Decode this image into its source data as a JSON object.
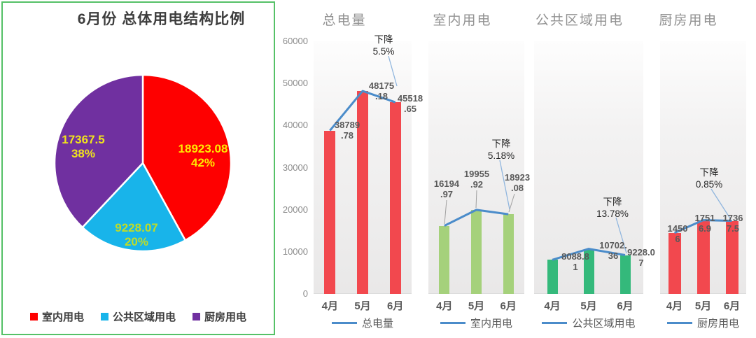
{
  "panel": {
    "border_color": "#55c167"
  },
  "chart_data": [
    {
      "type": "pie",
      "title": "6月份 总体用电结构比例",
      "legend_position": "bottom",
      "slices": [
        {
          "label": "室内用电",
          "value": 18923.08,
          "value_label": "18923.08",
          "percent": "42%",
          "color": "#fe0000",
          "label_color": "#ffe800"
        },
        {
          "label": "公共区域用电",
          "value": 9228.07,
          "value_label": "9228.07",
          "percent": "20%",
          "color": "#18b4ea",
          "label_color": "#bedc28"
        },
        {
          "label": "厨房用电",
          "value": 17367.5,
          "value_label": "17367.5",
          "percent": "38%",
          "color": "#7030a0",
          "label_color": "#f0e41c"
        }
      ]
    },
    {
      "type": "bar",
      "line_overlay": true,
      "title": "总电量",
      "categories": [
        "4月",
        "5月",
        "6月"
      ],
      "values": [
        38789.78,
        48175.18,
        45518.65
      ],
      "data_labels": [
        [
          "38789",
          ".78"
        ],
        [
          "48175",
          ".18"
        ],
        [
          "45518",
          ".65"
        ]
      ],
      "annotation": [
        "下降",
        "5.5%"
      ],
      "legend_label": "总电量",
      "bar_color": "#f2484e",
      "line_color": "#4b8cca",
      "ylim": [
        0,
        60000
      ],
      "y_ticks": [
        60000,
        50000,
        40000,
        30000,
        20000,
        10000,
        0
      ],
      "grid": false
    },
    {
      "type": "bar",
      "line_overlay": true,
      "title": "室内用电",
      "categories": [
        "4月",
        "5月",
        "6月"
      ],
      "values": [
        16194.97,
        19955.92,
        18923.08
      ],
      "data_labels": [
        [
          "16194",
          ".97"
        ],
        [
          "19955",
          ".92"
        ],
        [
          "18923",
          ".08"
        ]
      ],
      "annotation": [
        "下降",
        "5.18%"
      ],
      "legend_label": "室内用电",
      "bar_color": "#a5d17b",
      "line_color": "#4b8cca",
      "ylim": [
        0,
        60000
      ],
      "y_ticks": [],
      "grid": false
    },
    {
      "type": "bar",
      "line_overlay": true,
      "title": "公共区域用电",
      "categories": [
        "4月",
        "5月",
        "6月"
      ],
      "values": [
        8088.81,
        10702.36,
        9228.07
      ],
      "data_labels": [
        [
          "8088.8",
          "1"
        ],
        [
          "10702.",
          "36"
        ],
        [
          "9228.0",
          "7"
        ]
      ],
      "annotation": [
        "下降",
        "13.78%"
      ],
      "legend_label": "公共区域用电",
      "bar_color": "#34b97b",
      "line_color": "#4b8cca",
      "ylim": [
        0,
        60000
      ],
      "y_ticks": [],
      "grid": false
    },
    {
      "type": "bar",
      "line_overlay": true,
      "title": "厨房用电",
      "categories": [
        "4月",
        "5月",
        "6月"
      ],
      "values": [
        14506,
        17516.9,
        17367.5
      ],
      "data_labels": [
        [
          "1450",
          "6"
        ],
        [
          "1751",
          "6.9"
        ],
        [
          "1736",
          "7.5"
        ]
      ],
      "annotation": [
        "下降",
        "0.85%"
      ],
      "legend_label": "厨房用电",
      "bar_color": "#f2484e",
      "line_color": "#4b8cca",
      "ylim": [
        0,
        60000
      ],
      "y_ticks": [],
      "grid": false
    }
  ]
}
